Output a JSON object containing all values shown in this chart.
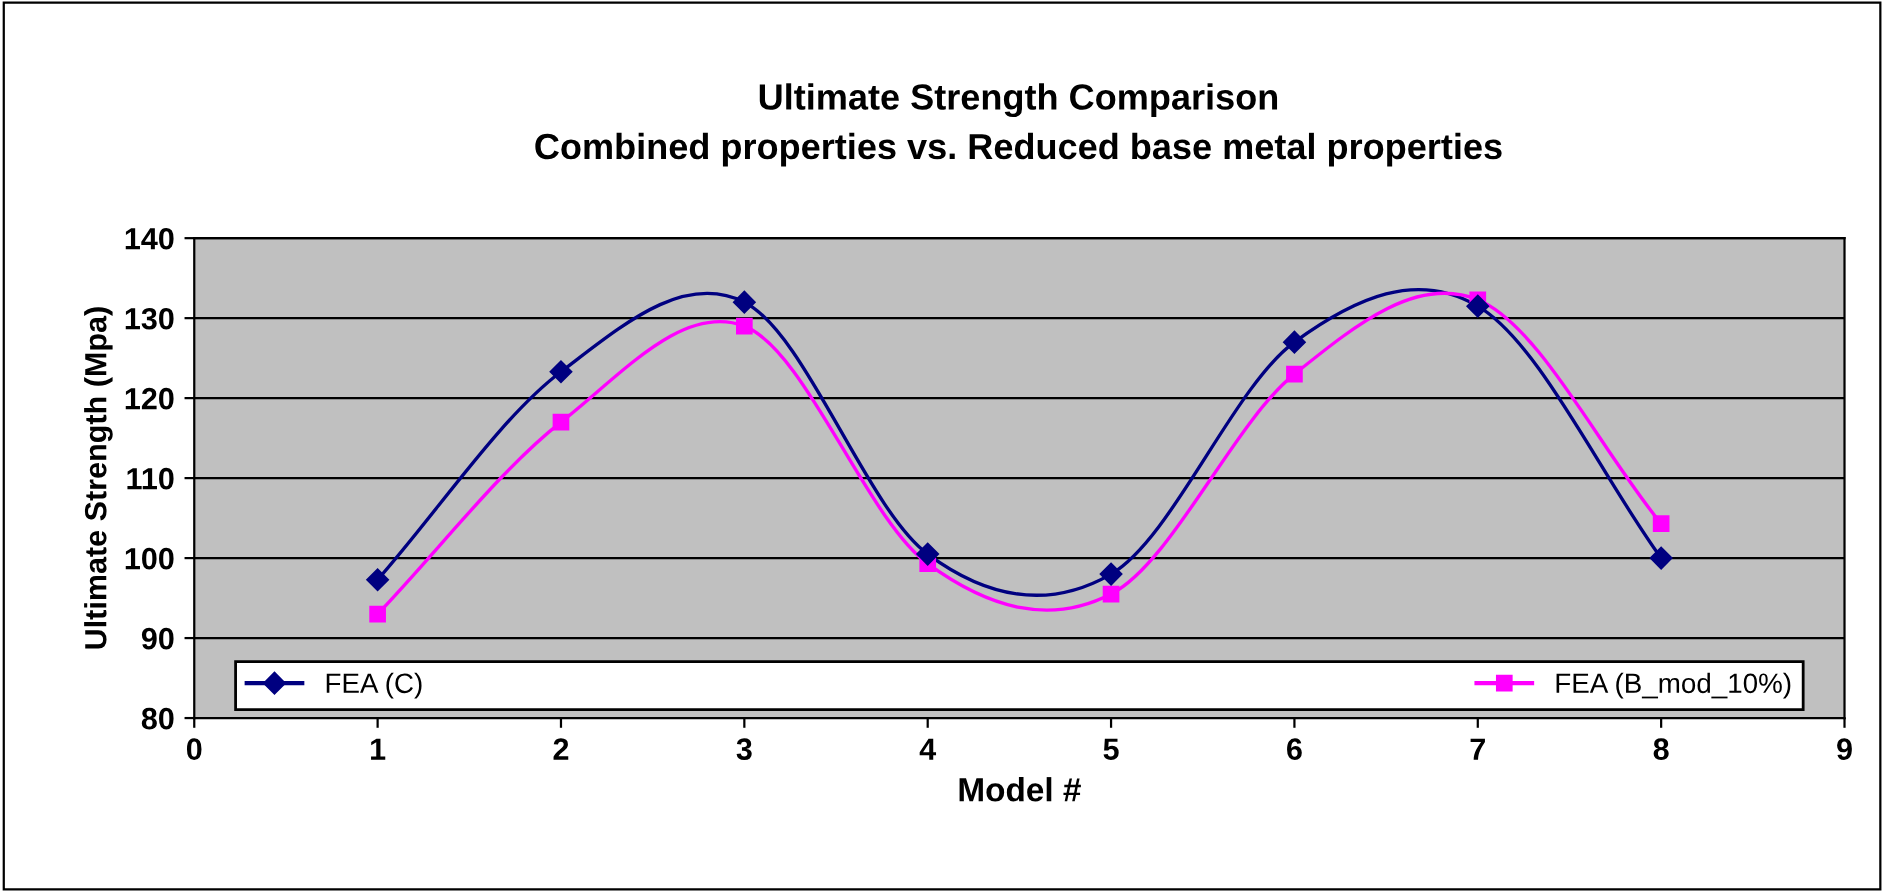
{
  "chart_data": {
    "type": "line",
    "title": "Ultimate Strength Comparison\nCombined properties vs. Reduced base metal properties",
    "xlabel": "Model #",
    "ylabel": "Ultimate Strength (Mpa)",
    "x": [
      1,
      2,
      3,
      4,
      5,
      6,
      7,
      8
    ],
    "series": [
      {
        "name": "FEA (C)",
        "color": "#000080",
        "marker": "diamond",
        "values": [
          97.3,
          123.3,
          132,
          100.5,
          98,
          127,
          131.5,
          100
        ]
      },
      {
        "name": "FEA (B_mod_10%)",
        "color": "#ff00ff",
        "marker": "square",
        "values": [
          93,
          117,
          129,
          99.3,
          95.5,
          123,
          132.3,
          104.3
        ]
      }
    ],
    "xlim": [
      0,
      9
    ],
    "xticks": [
      0,
      1,
      2,
      3,
      4,
      5,
      6,
      7,
      8,
      9
    ],
    "ylim": [
      80,
      140
    ],
    "yticks": [
      80,
      90,
      100,
      110,
      120,
      130,
      140
    ],
    "grid": "y",
    "legend": "bottom",
    "line_style": "solid"
  }
}
